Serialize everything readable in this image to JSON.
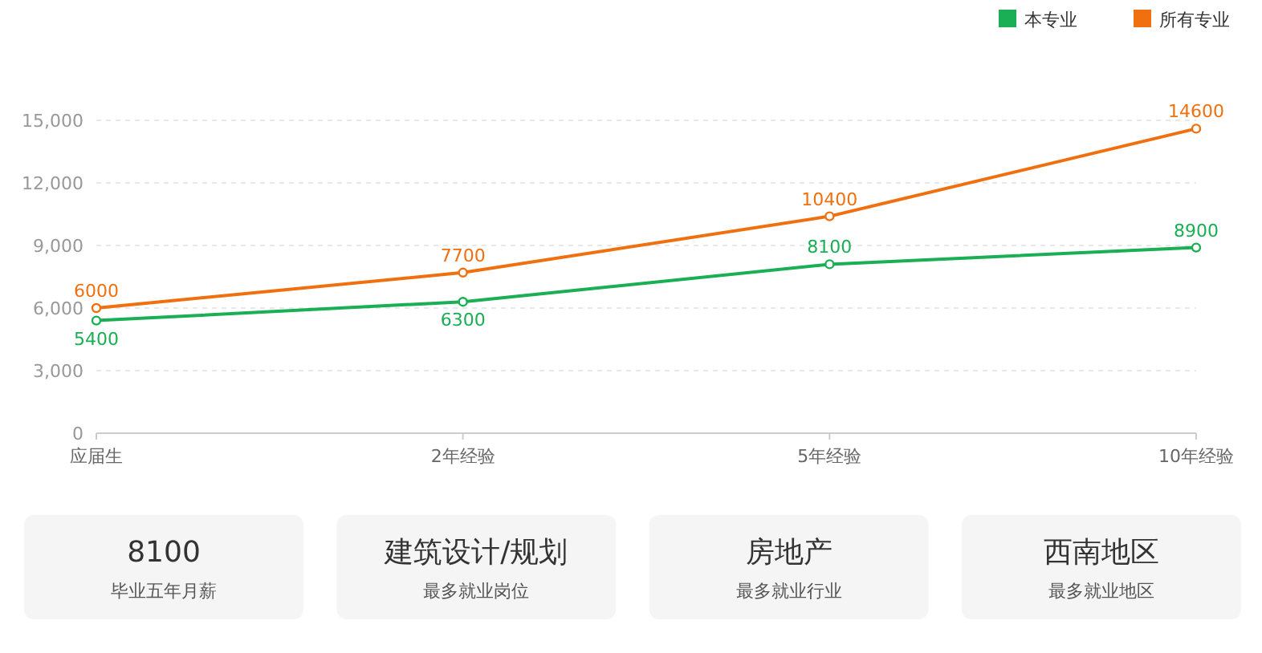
{
  "chart_data": [
    {
      "type": "line",
      "categories": [
        "应届生",
        "2年经验",
        "5年经验",
        "10年经验"
      ],
      "series": [
        {
          "name": "本专业",
          "color": "#1aaf54",
          "values": [
            5400,
            6300,
            8100,
            8900
          ]
        },
        {
          "name": "所有专业",
          "color": "#f0700f",
          "values": [
            6000,
            7700,
            10400,
            14600
          ]
        }
      ],
      "ylim": [
        0,
        15000
      ],
      "yticks": [
        0,
        {
          "value": 3000,
          "label": "3,000"
        },
        {
          "value": 6000,
          "label": "6,000"
        },
        {
          "value": 9000,
          "label": "9,000"
        },
        {
          "value": 12000,
          "label": "12,000"
        },
        {
          "value": 15000,
          "label": "15,000"
        }
      ],
      "grid": "y",
      "legend": "top right",
      "marker": "circle",
      "line_style": "solid",
      "data_labels": true
    },
    {
      "type": "other",
      "annotations": [
        "8100",
        "毕业五年月薪",
        "建筑设计/规划",
        "最多就业岗位",
        "房地产",
        "最多就业行业",
        "西南地区",
        "最多就业地区"
      ]
    }
  ]
}
